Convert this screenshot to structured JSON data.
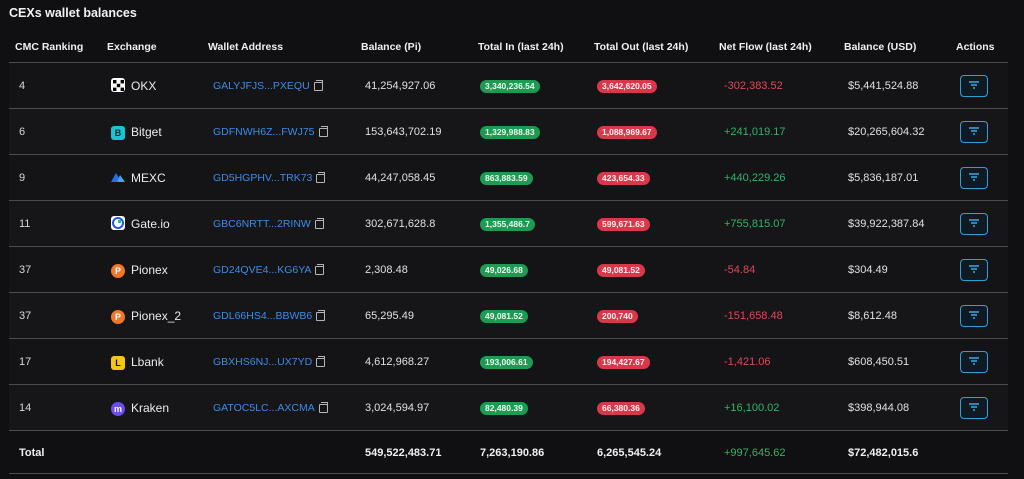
{
  "title": "CEXs wallet balances",
  "columns": [
    "CMC Ranking",
    "Exchange",
    "Wallet Address",
    "Balance (Pi)",
    "Total In (last 24h)",
    "Total Out (last 24h)",
    "Net Flow (last 24h)",
    "Balance (USD)",
    "Actions"
  ],
  "colors": {
    "positive": "#35b26a",
    "negative": "#e0485a",
    "link": "#3d8be8",
    "pill_green": "#1e9a52",
    "pill_red": "#d7394b",
    "action_border": "#2f9fd8"
  },
  "rows": [
    {
      "rank": "4",
      "exchange": "OKX",
      "icon": "okx-logo-icon",
      "address": "GALYJFJS...PXEQU",
      "balance_pi": "41,254,927.06",
      "total_in": "3,340,236.54",
      "total_out": "3,642,620.05",
      "net_flow": "-302,383.52",
      "net_sign": "neg",
      "balance_usd": "$5,441,524.88"
    },
    {
      "rank": "6",
      "exchange": "Bitget",
      "icon": "bitget-logo-icon",
      "address": "GDFNWH6Z...FWJ75",
      "balance_pi": "153,643,702.19",
      "total_in": "1,329,988.83",
      "total_out": "1,088,969.67",
      "net_flow": "+241,019.17",
      "net_sign": "pos",
      "balance_usd": "$20,265,604.32"
    },
    {
      "rank": "9",
      "exchange": "MEXC",
      "icon": "mexc-logo-icon",
      "address": "GD5HGPHV...TRK73",
      "balance_pi": "44,247,058.45",
      "total_in": "863,883.59",
      "total_out": "423,654.33",
      "net_flow": "+440,229.26",
      "net_sign": "pos",
      "balance_usd": "$5,836,187.01"
    },
    {
      "rank": "11",
      "exchange": "Gate.io",
      "icon": "gateio-logo-icon",
      "address": "GBC6NRTT...2RINW",
      "balance_pi": "302,671,628.8",
      "total_in": "1,355,486.7",
      "total_out": "599,671.63",
      "net_flow": "+755,815.07",
      "net_sign": "pos",
      "balance_usd": "$39,922,387.84"
    },
    {
      "rank": "37",
      "exchange": "Pionex",
      "icon": "pionex-logo-icon",
      "address": "GD24QVE4...KG6YA",
      "balance_pi": "2,308.48",
      "total_in": "49,026.68",
      "total_out": "49,081.52",
      "net_flow": "-54.84",
      "net_sign": "neg",
      "balance_usd": "$304.49"
    },
    {
      "rank": "37",
      "exchange": "Pionex_2",
      "icon": "pionex-logo-icon",
      "address": "GDL66HS4...BBWB6",
      "balance_pi": "65,295.49",
      "total_in": "49,081.52",
      "total_out": "200,740",
      "net_flow": "-151,658.48",
      "net_sign": "neg",
      "balance_usd": "$8,612.48"
    },
    {
      "rank": "17",
      "exchange": "Lbank",
      "icon": "lbank-logo-icon",
      "address": "GBXHS6NJ...UX7YD",
      "balance_pi": "4,612,968.27",
      "total_in": "193,006.61",
      "total_out": "194,427.67",
      "net_flow": "-1,421.06",
      "net_sign": "neg",
      "balance_usd": "$608,450.51"
    },
    {
      "rank": "14",
      "exchange": "Kraken",
      "icon": "kraken-logo-icon",
      "address": "GATOC5LC...AXCMA",
      "balance_pi": "3,024,594.97",
      "total_in": "82,480.39",
      "total_out": "66,380.36",
      "net_flow": "+16,100.02",
      "net_sign": "pos",
      "balance_usd": "$398,944.08"
    }
  ],
  "total": {
    "label": "Total",
    "balance_pi": "549,522,483.71",
    "total_in": "7,263,190.86",
    "total_out": "6,265,545.24",
    "net_flow": "+997,645.62",
    "balance_usd": "$72,482,015.6"
  }
}
